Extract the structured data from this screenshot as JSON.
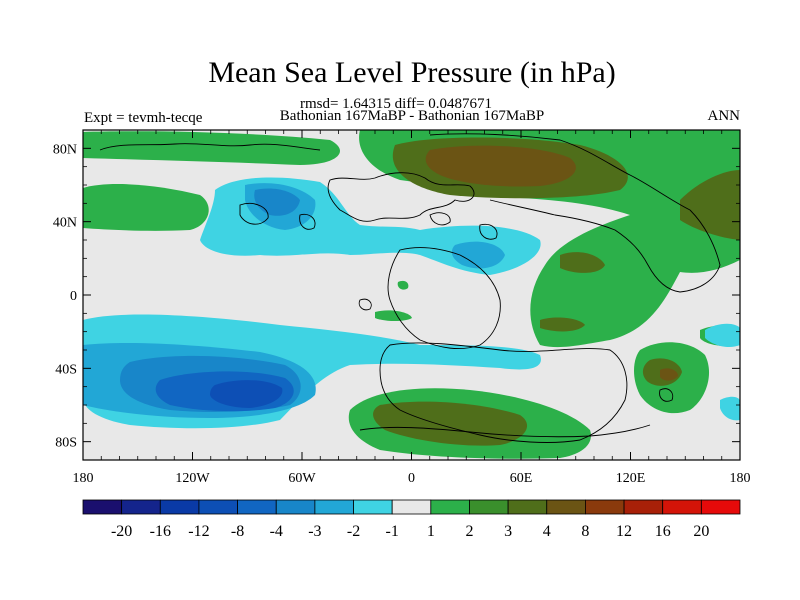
{
  "chart_data": {
    "type": "heatmap",
    "title": "Mean Sea Level Pressure (in hPa)",
    "stats_line": "rmsd= 1.64315 diff= 0.0487671",
    "left_label": "Expt = tevmh-tecqe",
    "center_label": "Bathonian 167MaBP - Bathonian 167MaBP",
    "right_label": "ANN",
    "x_axis": {
      "range": [
        -180,
        180
      ],
      "ticks": [
        -180,
        -120,
        -60,
        0,
        60,
        120,
        180
      ],
      "tick_labels": [
        "180",
        "120W",
        "60W",
        "0",
        "60E",
        "120E",
        "180"
      ]
    },
    "y_axis": {
      "range": [
        -90,
        90
      ],
      "ticks": [
        80,
        40,
        0,
        -40,
        -80
      ],
      "tick_labels": [
        "80N",
        "40N",
        "0",
        "40S",
        "80S"
      ]
    },
    "colorbar": {
      "labels": [
        "-20",
        "-16",
        "-12",
        "-8",
        "-4",
        "-3",
        "-2",
        "-1",
        "1",
        "2",
        "3",
        "4",
        "8",
        "12",
        "16",
        "20"
      ],
      "colors": [
        "#1a0f6e",
        "#14248c",
        "#0a3aa6",
        "#0d4fb5",
        "#1166c2",
        "#1886c9",
        "#22a7d6",
        "#3fd3e3",
        "#e8e8e8",
        "#2cb04a",
        "#3a8f2c",
        "#4f6e1a",
        "#6b5414",
        "#8a3a0c",
        "#a82008",
        "#d41408",
        "#e60a0a"
      ]
    },
    "fields": [
      {
        "level": "2",
        "color": "#2cb04a",
        "desc": "positive anomaly"
      },
      {
        "level": "3",
        "color": "#4f6e1a",
        "desc": "positive anomaly"
      },
      {
        "level": "4",
        "color": "#6b5414",
        "desc": "positive anomaly"
      },
      {
        "level": "-2",
        "color": "#22a7d6",
        "desc": "negative anomaly"
      },
      {
        "level": "-3",
        "color": "#1886c9",
        "desc": "negative anomaly"
      },
      {
        "level": "-4",
        "color": "#1166c2",
        "desc": "negative anomaly"
      },
      {
        "level": "-8",
        "color": "#0d4fb5",
        "desc": "negative anomaly"
      }
    ]
  }
}
